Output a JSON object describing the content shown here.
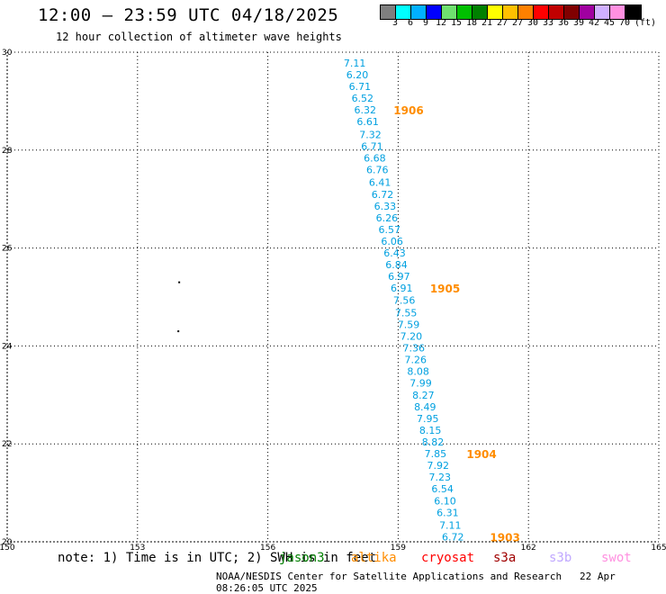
{
  "header": {
    "title": "12:00 – 23:59 UTC 04/18/2025",
    "subtitle": "12 hour collection of altimeter wave heights"
  },
  "colorbar": {
    "colors": [
      "#7f7f7f",
      "#00ffff",
      "#00b0ff",
      "#0000ff",
      "#6fe06f",
      "#00c000",
      "#008000",
      "#ffff00",
      "#ffc000",
      "#ff8000",
      "#ff0000",
      "#c00000",
      "#800000",
      "#a000a0",
      "#d0b0ff",
      "#ff90e0",
      "#000000"
    ],
    "labels": [
      "3",
      "6",
      "9",
      "12",
      "15",
      "18",
      "21",
      "27",
      "27",
      "30",
      "33",
      "36",
      "39",
      "42",
      "45",
      "70",
      "(ft)"
    ]
  },
  "chart_data": {
    "type": "scatter",
    "title": "12:00 – 23:59 UTC 04/18/2025",
    "xlim": [
      150,
      165
    ],
    "ylim": [
      20,
      30
    ],
    "x_ticks": [
      150,
      153,
      156,
      159,
      162,
      165
    ],
    "y_ticks": [
      {
        "value": 20,
        "label": "20"
      },
      {
        "value": 22,
        "label": "22"
      },
      {
        "value": 24,
        "label": "24"
      },
      {
        "value": 26,
        "label": "26"
      },
      {
        "value": 28,
        "label": "28"
      },
      {
        "value": 30,
        "label": "30"
      }
    ],
    "grid": true,
    "wave_heights": [
      {
        "lon": 158.0,
        "lat": 29.78,
        "swh": "7.11"
      },
      {
        "lon": 158.06,
        "lat": 29.54,
        "swh": "6.20"
      },
      {
        "lon": 158.12,
        "lat": 29.3,
        "swh": "6.71"
      },
      {
        "lon": 158.18,
        "lat": 29.06,
        "swh": "6.52"
      },
      {
        "lon": 158.24,
        "lat": 28.82,
        "swh": "6.32"
      },
      {
        "lon": 158.3,
        "lat": 28.58,
        "swh": "6.61"
      },
      {
        "lon": 158.36,
        "lat": 28.32,
        "swh": "7.32"
      },
      {
        "lon": 158.4,
        "lat": 28.08,
        "swh": "6.71"
      },
      {
        "lon": 158.46,
        "lat": 27.84,
        "swh": "6.68"
      },
      {
        "lon": 158.52,
        "lat": 27.6,
        "swh": "6.76"
      },
      {
        "lon": 158.58,
        "lat": 27.34,
        "swh": "6.41"
      },
      {
        "lon": 158.64,
        "lat": 27.1,
        "swh": "6.72"
      },
      {
        "lon": 158.7,
        "lat": 26.86,
        "swh": "6.33"
      },
      {
        "lon": 158.74,
        "lat": 26.62,
        "swh": "6.26"
      },
      {
        "lon": 158.8,
        "lat": 26.38,
        "swh": "6.57"
      },
      {
        "lon": 158.86,
        "lat": 26.14,
        "swh": "6.06"
      },
      {
        "lon": 158.92,
        "lat": 25.9,
        "swh": "6.43"
      },
      {
        "lon": 158.96,
        "lat": 25.66,
        "swh": "6.84"
      },
      {
        "lon": 159.02,
        "lat": 25.42,
        "swh": "6.97"
      },
      {
        "lon": 159.08,
        "lat": 25.18,
        "swh": "6.91"
      },
      {
        "lon": 159.14,
        "lat": 24.94,
        "swh": "7.56"
      },
      {
        "lon": 159.18,
        "lat": 24.68,
        "swh": "7.55"
      },
      {
        "lon": 159.24,
        "lat": 24.44,
        "swh": "7.59"
      },
      {
        "lon": 159.3,
        "lat": 24.2,
        "swh": "7.20"
      },
      {
        "lon": 159.36,
        "lat": 23.96,
        "swh": "7.36"
      },
      {
        "lon": 159.4,
        "lat": 23.72,
        "swh": "7.26"
      },
      {
        "lon": 159.46,
        "lat": 23.48,
        "swh": "8.08"
      },
      {
        "lon": 159.52,
        "lat": 23.24,
        "swh": "7.99"
      },
      {
        "lon": 159.58,
        "lat": 23.0,
        "swh": "8.27"
      },
      {
        "lon": 159.62,
        "lat": 22.76,
        "swh": "8.49"
      },
      {
        "lon": 159.68,
        "lat": 22.52,
        "swh": "7.95"
      },
      {
        "lon": 159.74,
        "lat": 22.28,
        "swh": "8.15"
      },
      {
        "lon": 159.8,
        "lat": 22.04,
        "swh": "8.82"
      },
      {
        "lon": 159.86,
        "lat": 21.8,
        "swh": "7.85"
      },
      {
        "lon": 159.92,
        "lat": 21.56,
        "swh": "7.92"
      },
      {
        "lon": 159.96,
        "lat": 21.32,
        "swh": "7.23"
      },
      {
        "lon": 160.02,
        "lat": 21.08,
        "swh": "6.54"
      },
      {
        "lon": 160.08,
        "lat": 20.84,
        "swh": "6.10"
      },
      {
        "lon": 160.14,
        "lat": 20.6,
        "swh": "6.31"
      },
      {
        "lon": 160.2,
        "lat": 20.34,
        "swh": "7.11"
      },
      {
        "lon": 160.26,
        "lat": 20.1,
        "swh": "6.72"
      }
    ],
    "pass_times": [
      {
        "lon": 159.24,
        "lat": 28.82,
        "label": "1906"
      },
      {
        "lon": 160.08,
        "lat": 25.18,
        "label": "1905"
      },
      {
        "lon": 160.92,
        "lat": 21.8,
        "label": "1904"
      },
      {
        "lon": 161.46,
        "lat": 20.1,
        "label": "1903"
      }
    ],
    "points": [
      {
        "lon": 153.96,
        "lat": 25.3
      },
      {
        "lon": 153.94,
        "lat": 24.3
      }
    ]
  },
  "note": "note: 1) Time is in UTC; 2) SWH is in feet",
  "legend": [
    {
      "name": "jason3",
      "color": "#008000"
    },
    {
      "name": "altika",
      "color": "#ff8c00"
    },
    {
      "name": "cryosat",
      "color": "#ff0000"
    },
    {
      "name": "s3a",
      "color": "#a00000"
    },
    {
      "name": "s3b",
      "color": "#c0a8ff"
    },
    {
      "name": "swot",
      "color": "#ff90e0"
    }
  ],
  "footer": {
    "credit": "NOAA/NESDIS Center for Satellite Applications and Research",
    "timestamp": "22 Apr 08:26:05 UTC 2025"
  }
}
